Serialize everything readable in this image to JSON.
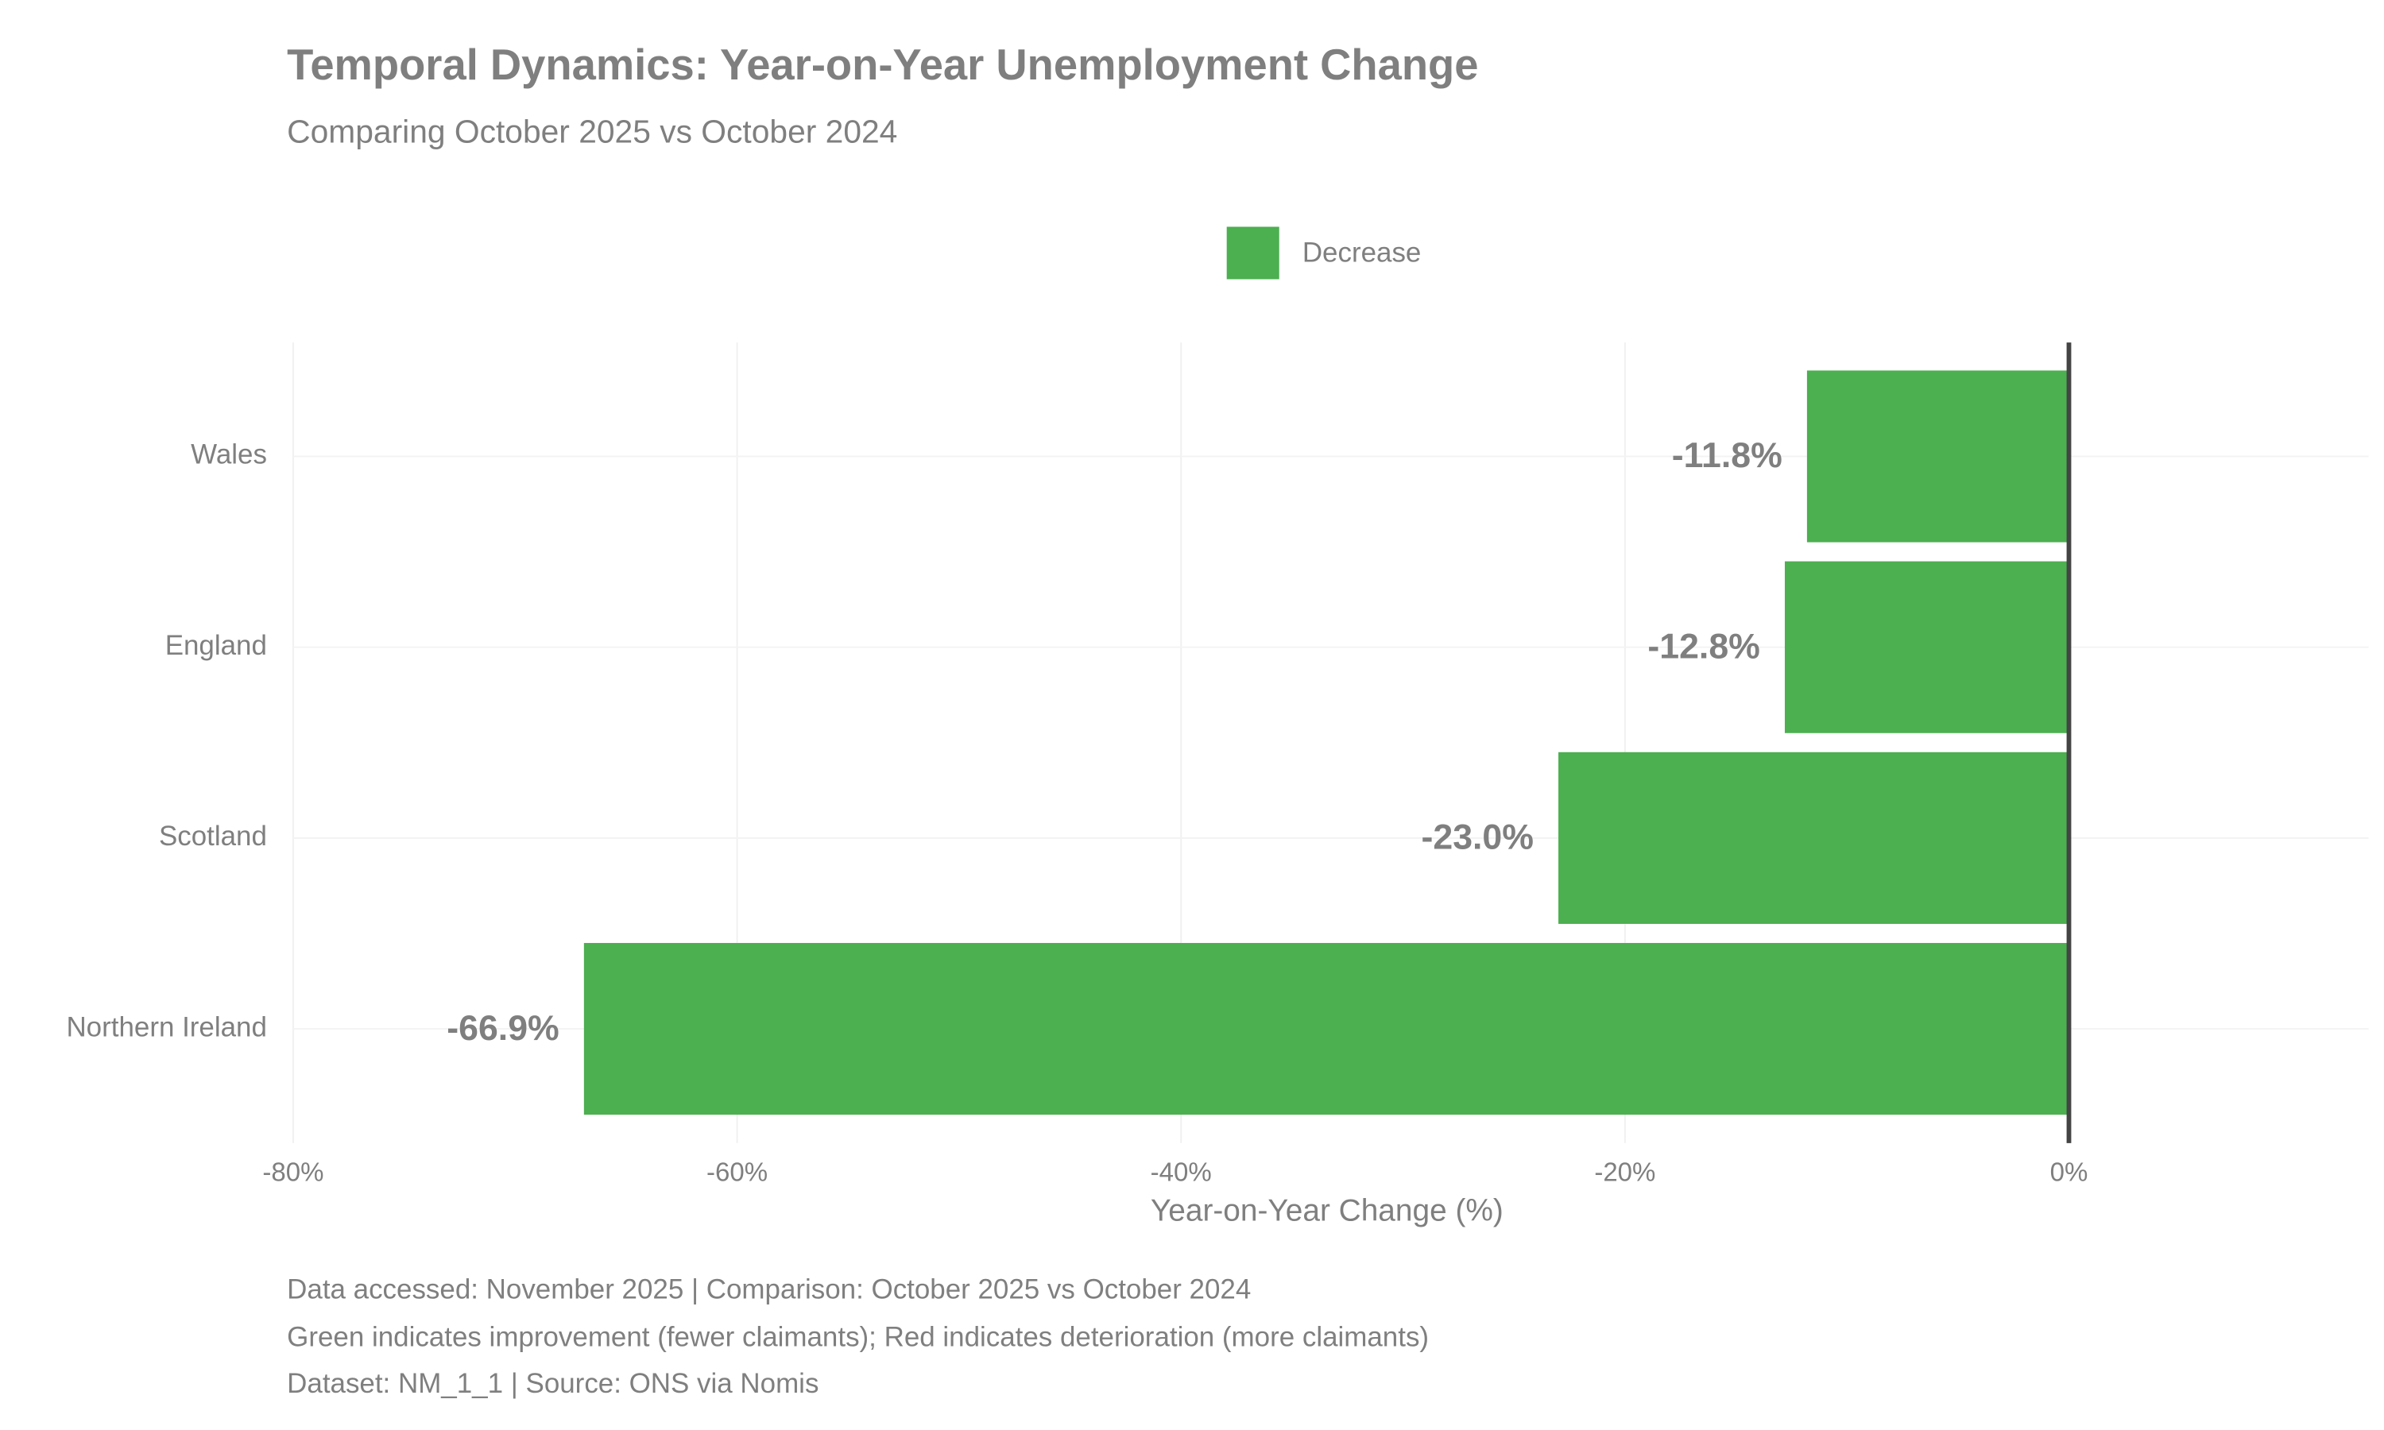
{
  "chart_data": {
    "type": "bar",
    "orientation": "horizontal",
    "title": "Temporal Dynamics: Year-on-Year Unemployment Change",
    "subtitle": "Comparing October 2025 vs October 2024",
    "categories": [
      "Wales",
      "England",
      "Scotland",
      "Northern Ireland"
    ],
    "series": [
      {
        "name": "Decrease",
        "color": "#4CAF50",
        "values": [
          -11.8,
          -12.8,
          -23.0,
          -66.9
        ],
        "value_labels": [
          "-11.8%",
          "-12.8%",
          "-23.0%",
          "-66.9%"
        ]
      }
    ],
    "xlabel": "Year-on-Year Change (%)",
    "xlim": [
      -80,
      13.5
    ],
    "xticks": [
      {
        "value": -80,
        "label": "-80%"
      },
      {
        "value": -60,
        "label": "-60%"
      },
      {
        "value": -40,
        "label": "-40%"
      },
      {
        "value": -20,
        "label": "-20%"
      },
      {
        "value": 0,
        "label": "0%"
      }
    ],
    "grid": true,
    "legend": "top",
    "captions": [
      "Data accessed: November 2025 | Comparison: October 2025 vs October 2024",
      "Green indicates improvement (fewer claimants); Red indicates deterioration (more claimants)",
      "Dataset: NM_1_1 | Source: ONS via Nomis"
    ]
  }
}
